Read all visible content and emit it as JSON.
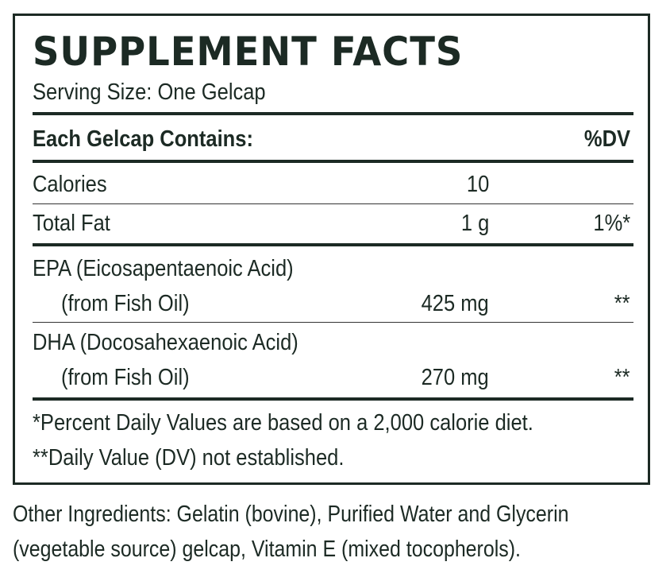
{
  "panel": {
    "title": "SUPPLEMENT FACTS",
    "serving_size": "Serving Size: One Gelcap",
    "header": {
      "contains": "Each Gelcap Contains:",
      "dv": "%DV"
    },
    "rows": [
      {
        "name": "Calories",
        "amount": "10",
        "dv": ""
      },
      {
        "name": "Total Fat",
        "amount": "1 g",
        "dv": "1%*"
      },
      {
        "name": "EPA (Eicosapentaenoic Acid)",
        "sub": "(from Fish Oil)",
        "amount": "425 mg",
        "dv": "**"
      },
      {
        "name": "DHA (Docosahexaenoic Acid)",
        "sub": "(from Fish Oil)",
        "amount": "270 mg",
        "dv": "**"
      }
    ],
    "footnotes": [
      "*Percent Daily Values are based on a 2,000 calorie diet.",
      "**Daily Value (DV) not established."
    ]
  },
  "other_ingredients": [
    "Other Ingredients: Gelatin (bovine), Purified Water and  Glycerin",
    "(vegetable source) gelcap, Vitamin E (mixed tocopherols)."
  ]
}
